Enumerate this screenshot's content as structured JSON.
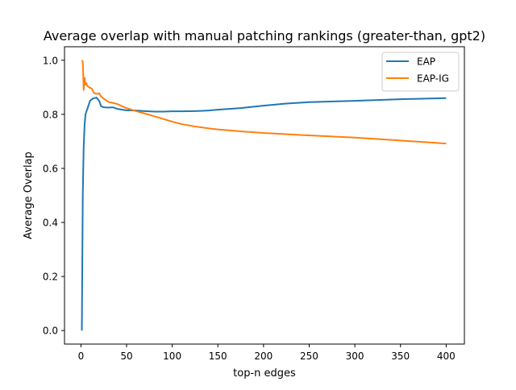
{
  "chart_data": {
    "type": "line",
    "title": "Average overlap with manual patching rankings (greater-than, gpt2)",
    "xlabel": "top-n edges",
    "ylabel": "Average Overlap",
    "xlim": [
      -18,
      420
    ],
    "ylim": [
      -0.05,
      1.05
    ],
    "xticks": [
      0,
      50,
      100,
      150,
      200,
      250,
      300,
      350,
      400
    ],
    "yticks": [
      0.0,
      0.2,
      0.4,
      0.6,
      0.8,
      1.0
    ],
    "ytick_labels": [
      "0.0",
      "0.2",
      "0.4",
      "0.6",
      "0.8",
      "1.0"
    ],
    "grid": false,
    "legend_position": "top-right",
    "series": [
      {
        "name": "EAP",
        "color": "#1f77b4",
        "x": [
          1,
          2,
          3,
          4,
          5,
          7,
          10,
          13,
          17,
          20,
          22,
          25,
          30,
          35,
          40,
          45,
          50,
          60,
          70,
          80,
          90,
          100,
          110,
          125,
          140,
          150,
          175,
          200,
          225,
          250,
          300,
          350,
          400
        ],
        "y": [
          0.0,
          0.5,
          0.68,
          0.76,
          0.8,
          0.82,
          0.85,
          0.858,
          0.862,
          0.85,
          0.83,
          0.826,
          0.825,
          0.826,
          0.82,
          0.817,
          0.815,
          0.814,
          0.812,
          0.81,
          0.81,
          0.811,
          0.811,
          0.812,
          0.814,
          0.817,
          0.823,
          0.832,
          0.84,
          0.845,
          0.85,
          0.856,
          0.86
        ]
      },
      {
        "name": "EAP-IG",
        "color": "#ff7f0e",
        "x": [
          1,
          2,
          3,
          4,
          5,
          6,
          7,
          9,
          12,
          14,
          17,
          20,
          22,
          25,
          30,
          35,
          40,
          45,
          50,
          60,
          70,
          80,
          90,
          100,
          110,
          125,
          140,
          150,
          175,
          200,
          250,
          300,
          350,
          400
        ],
        "y": [
          1.0,
          0.995,
          0.89,
          0.935,
          0.91,
          0.915,
          0.905,
          0.9,
          0.895,
          0.88,
          0.875,
          0.878,
          0.866,
          0.858,
          0.846,
          0.842,
          0.838,
          0.83,
          0.823,
          0.812,
          0.803,
          0.793,
          0.783,
          0.773,
          0.764,
          0.755,
          0.748,
          0.744,
          0.737,
          0.731,
          0.722,
          0.714,
          0.703,
          0.692
        ]
      }
    ]
  }
}
